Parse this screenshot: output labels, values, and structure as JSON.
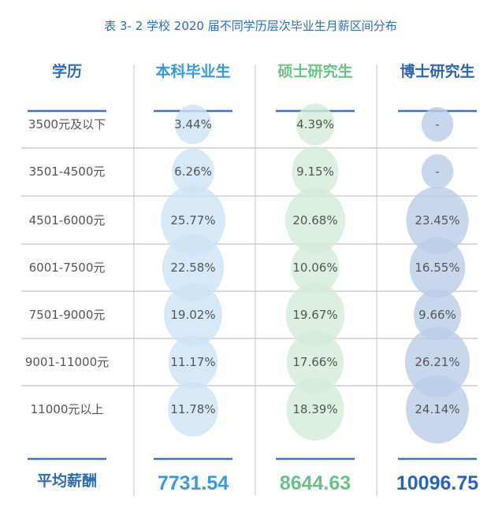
{
  "chart_data": {
    "type": "table",
    "title": "表 3- 2  学校 2020 届不同学历层次毕业生月薪区间分布",
    "row_header": "学历",
    "categories": [
      "3500元及以下",
      "3501-4500元",
      "4501-6000元",
      "6001-7500元",
      "7501-9000元",
      "9001-11000元",
      "11000元以上"
    ],
    "series": [
      {
        "name": "本科毕业生",
        "color": "#3a9ad9",
        "bubble_color": "#cde2f4",
        "values": [
          "3.44%",
          "6.26%",
          "25.77%",
          "22.58%",
          "19.02%",
          "11.17%",
          "11.78%"
        ],
        "average": "7731.54"
      },
      {
        "name": "硕士研究生",
        "color": "#6cc08a",
        "bubble_color": "#d3ebd9",
        "values": [
          "4.39%",
          "9.15%",
          "20.68%",
          "10.06%",
          "19.67%",
          "17.66%",
          "18.39%"
        ],
        "average": "8644.63"
      },
      {
        "name": "博士研究生",
        "color": "#2e64ad",
        "bubble_color": "#bccde8",
        "values": [
          "-",
          "-",
          "23.45%",
          "16.55%",
          "9.66%",
          "26.21%",
          "24.14%"
        ],
        "average": "10096.75"
      }
    ],
    "average_label": "平均薪酬",
    "colors": {
      "title": "#2f6db3",
      "header_line": "#3a72c0",
      "grid": "#b5b5b5"
    }
  }
}
